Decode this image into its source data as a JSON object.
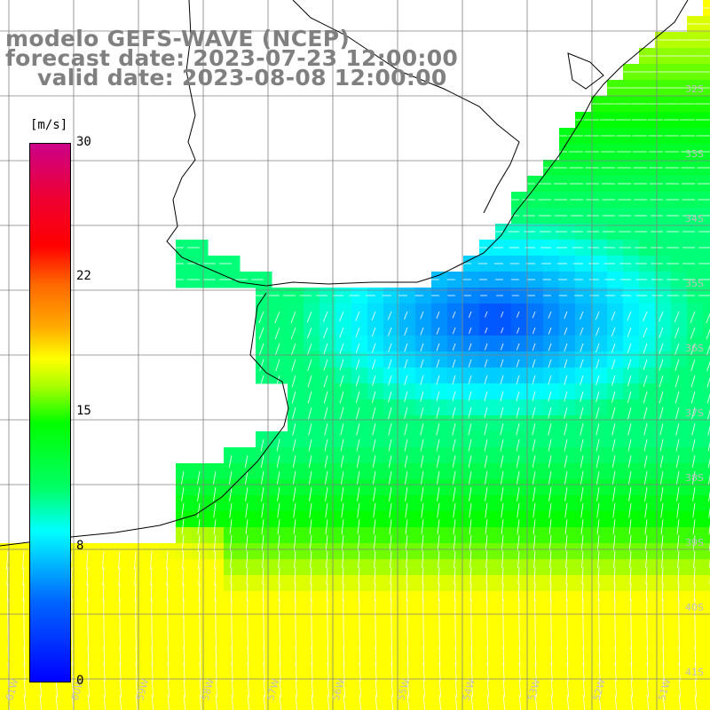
{
  "title": {
    "line1": "modelo GEFS-WAVE (NCEP)",
    "line2": "forecast date: 2023-07-23 12:00:00",
    "line3": "valid date: 2023-08-08 12:00:00"
  },
  "colorbar": {
    "units": "[m/s]",
    "ticks": [
      "30",
      "22",
      "15",
      "8",
      "0"
    ],
    "tick_values": [
      30,
      22,
      15,
      8,
      0
    ],
    "min": 0,
    "max": 30
  },
  "map": {
    "lat_labels": [
      "32S",
      "33S",
      "34S",
      "35S",
      "36S",
      "37S",
      "38S",
      "39S",
      "40S",
      "41S"
    ],
    "lon_labels": [
      "61W",
      "60W",
      "59W",
      "58W",
      "57W",
      "56W",
      "55W",
      "54W",
      "53W",
      "52W",
      "51W"
    ],
    "colors": {
      "low": "#0000ff",
      "mid": "#00ffff",
      "high": "#00ff00",
      "top": "#ffff00",
      "land": "#ffffff",
      "grid": "#808080",
      "coast": "#000000",
      "arrow": "#ffffff"
    }
  }
}
